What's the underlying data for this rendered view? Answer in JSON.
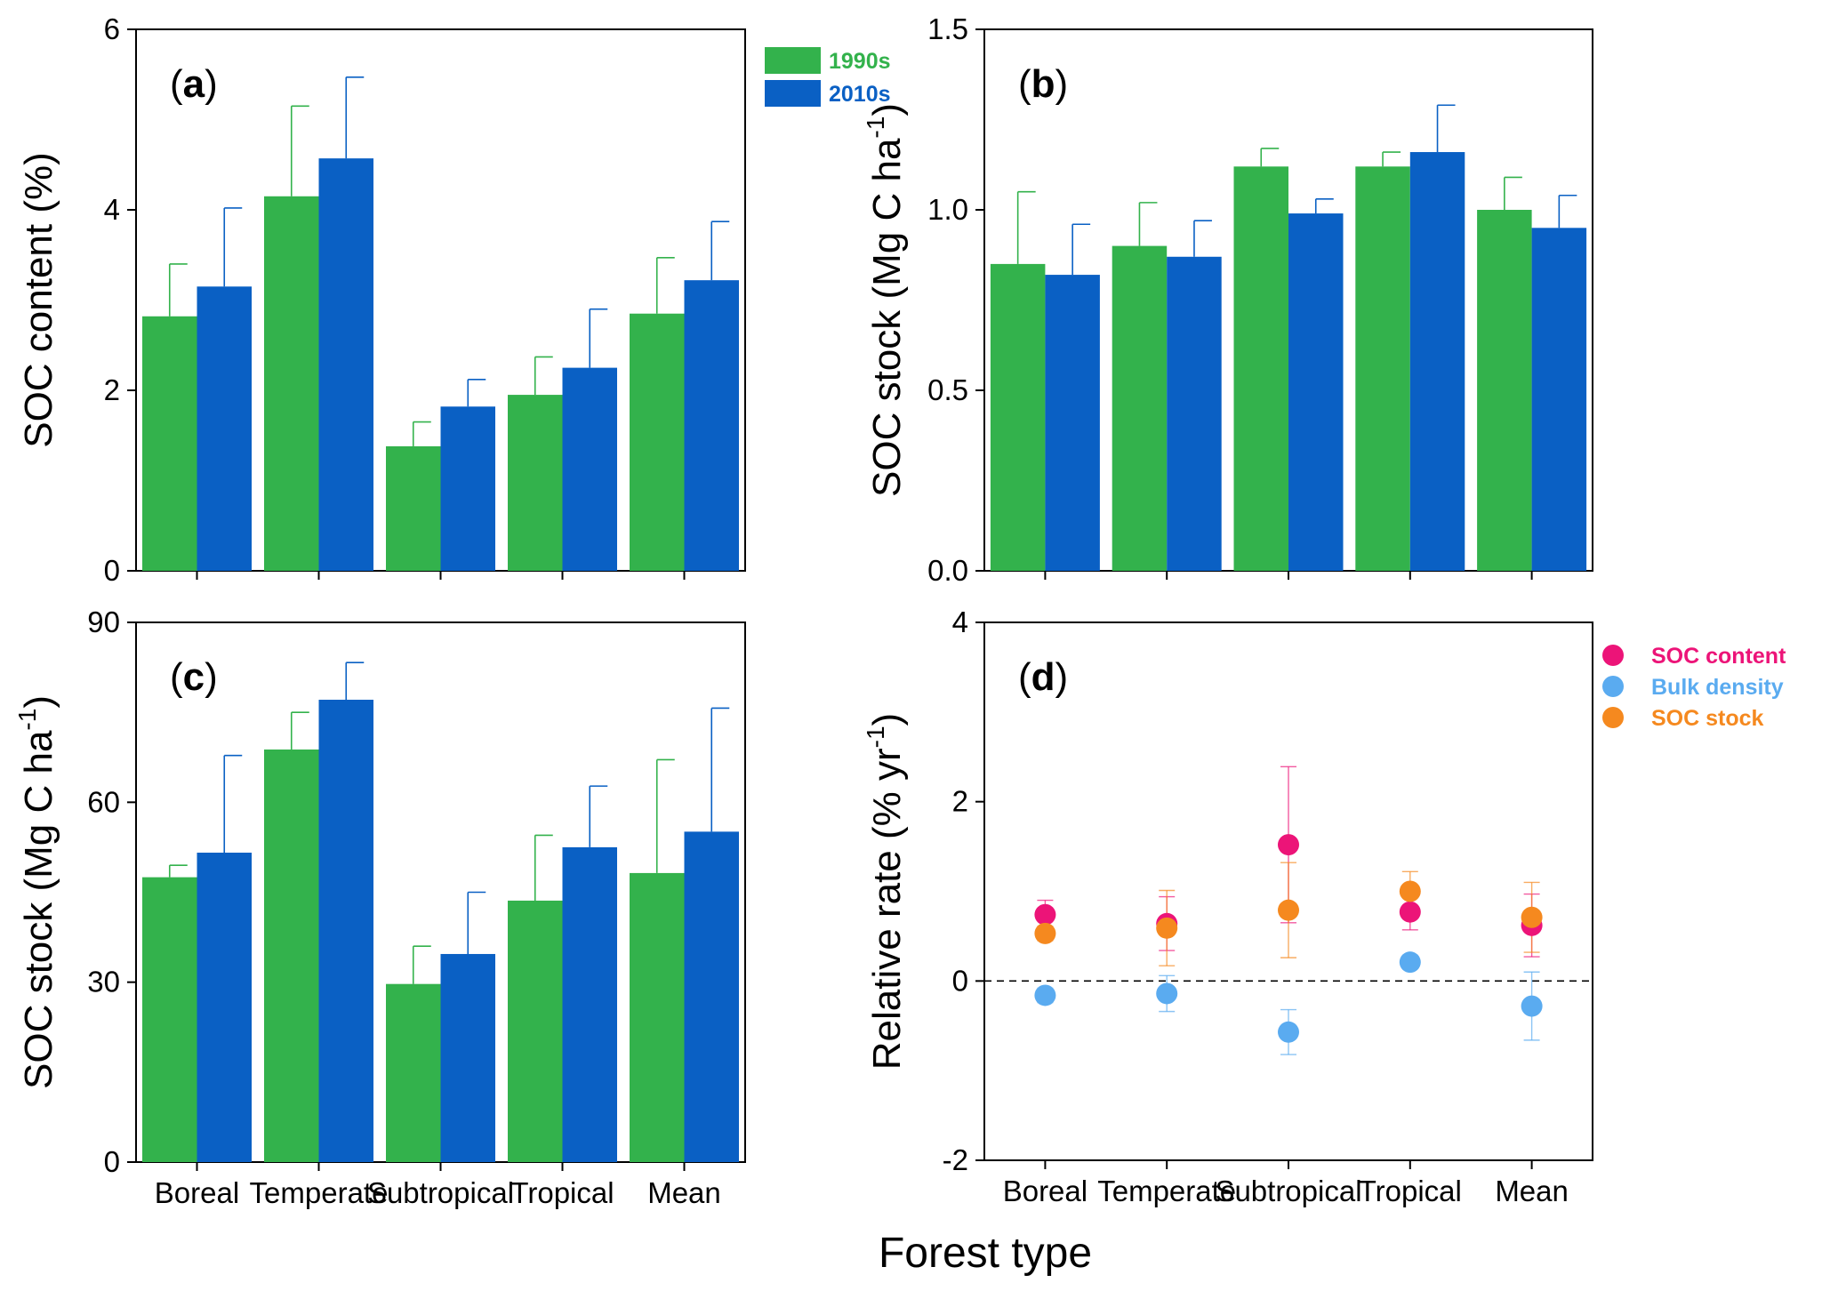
{
  "figure": {
    "xaxis_title": "Forest type",
    "categories": [
      "Boreal",
      "Temperate",
      "Subtropical",
      "Tropical",
      "Mean"
    ]
  },
  "colors": {
    "1990s": "#33b24c",
    "2010s": "#0a60c4",
    "soc_content": "#ec1478",
    "bulk_density": "#5aabf0",
    "soc_stock": "#f5891f",
    "axis": "#000000"
  },
  "chart_data": [
    {
      "id": "a",
      "panel_label": "a",
      "type": "bar",
      "ylabel": "SOC content (%)",
      "ylim": [
        0,
        6
      ],
      "yticks": [
        "0",
        "2",
        "4",
        "6"
      ],
      "legend": [
        "1990s",
        "2010s"
      ],
      "legend_position": "top-right",
      "categories": [
        "Boreal",
        "Temperate",
        "Subtropical",
        "Tropical",
        "Mean"
      ],
      "series": [
        {
          "name": "1990s",
          "values": [
            2.82,
            4.15,
            1.38,
            1.95,
            2.85
          ],
          "errors": [
            0.58,
            1.0,
            0.27,
            0.42,
            0.62
          ]
        },
        {
          "name": "2010s",
          "values": [
            3.15,
            4.57,
            1.82,
            2.25,
            3.22
          ],
          "errors": [
            0.87,
            0.9,
            0.3,
            0.65,
            0.65
          ]
        }
      ]
    },
    {
      "id": "b",
      "panel_label": "b",
      "type": "bar",
      "ylabel": "SOC stock (Mg C ha",
      "ylabel_sup": "-1",
      "ylabel_end": ")",
      "ylim": [
        0,
        1.5
      ],
      "yticks": [
        "0.0",
        "0.5",
        "1.0",
        "1.5"
      ],
      "categories": [
        "Boreal",
        "Temperate",
        "Subtropical",
        "Tropical",
        "Mean"
      ],
      "series": [
        {
          "name": "1990s",
          "values": [
            0.85,
            0.9,
            1.12,
            1.12,
            1.0
          ],
          "errors": [
            0.2,
            0.12,
            0.05,
            0.04,
            0.09
          ]
        },
        {
          "name": "2010s",
          "values": [
            0.82,
            0.87,
            0.99,
            1.16,
            0.95
          ],
          "errors": [
            0.14,
            0.1,
            0.04,
            0.13,
            0.09
          ]
        }
      ]
    },
    {
      "id": "c",
      "panel_label": "c",
      "type": "bar",
      "ylabel": "SOC stock (Mg C ha",
      "ylabel_sup": "-1",
      "ylabel_end": ")",
      "ylim": [
        0,
        90
      ],
      "yticks": [
        "0",
        "30",
        "60",
        "90"
      ],
      "categories": [
        "Boreal",
        "Temperate",
        "Subtropical",
        "Tropical",
        "Mean"
      ],
      "series": [
        {
          "name": "1990s",
          "values": [
            47.5,
            68.8,
            29.7,
            43.6,
            48.2
          ],
          "errors": [
            2.0,
            6.2,
            6.3,
            10.9,
            18.9
          ]
        },
        {
          "name": "2010s",
          "values": [
            51.6,
            77.1,
            34.7,
            52.5,
            55.1
          ],
          "errors": [
            16.2,
            6.2,
            10.3,
            10.2,
            20.6
          ]
        }
      ]
    },
    {
      "id": "d",
      "panel_label": "d",
      "type": "scatter",
      "ylabel": "Relative rate (% yr",
      "ylabel_sup": "-1",
      "ylabel_end": ")",
      "ylim": [
        -2,
        4
      ],
      "yticks": [
        "-2",
        "0",
        "2",
        "4"
      ],
      "reference_line": 0,
      "legend": [
        "SOC content",
        "Bulk density",
        "SOC stock"
      ],
      "legend_position": "top-right",
      "categories": [
        "Boreal",
        "Temperate",
        "Subtropical",
        "Tropical",
        "Mean"
      ],
      "series": [
        {
          "name": "SOC content",
          "values": [
            0.74,
            0.64,
            1.52,
            0.77,
            0.62
          ],
          "errors": [
            0.16,
            0.3,
            0.87,
            0.2,
            0.35
          ]
        },
        {
          "name": "Bulk density",
          "values": [
            -0.16,
            -0.14,
            -0.57,
            0.21,
            -0.28
          ],
          "errors": [
            0.08,
            0.2,
            0.25,
            0.07,
            0.38
          ]
        },
        {
          "name": "SOC stock",
          "values": [
            0.53,
            0.59,
            0.79,
            1.0,
            0.71
          ],
          "errors": [
            0.08,
            0.42,
            0.53,
            0.22,
            0.39
          ]
        }
      ]
    }
  ]
}
